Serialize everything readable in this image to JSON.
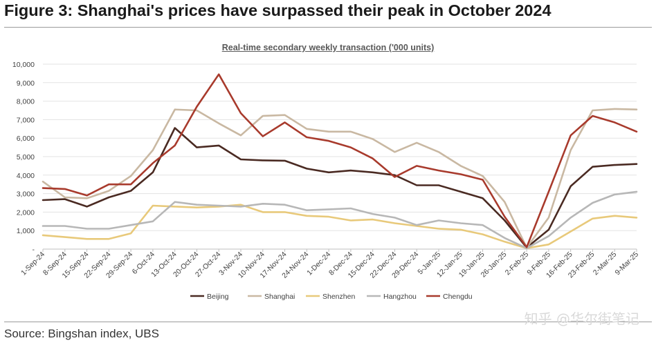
{
  "figure_title": "Figure 3: Shanghai's prices have surpassed their peak in October 2024",
  "source": "Source: Bingshan index, UBS",
  "watermark": "知乎 @华尔街笔记",
  "colors": {
    "Beijing": "#4a2a22",
    "Shanghai": "#c9b8a2",
    "Shenzhen": "#e8c97a",
    "Hangzhou": "#b7b7b7",
    "Chengdu": "#a83a2c"
  },
  "chart_data": {
    "type": "line",
    "title": "Real-time secondary weekly transaction ('000 units)",
    "xlabel": "",
    "ylabel": "",
    "ylim": [
      0,
      10000
    ],
    "yticks": [
      "-",
      "1,000",
      "2,000",
      "3,000",
      "4,000",
      "5,000",
      "6,000",
      "7,000",
      "8,000",
      "9,000",
      "10,000"
    ],
    "grid": true,
    "legend_position": "bottom",
    "categories": [
      "1-Sep-24",
      "8-Sep-24",
      "15-Sep-24",
      "22-Sep-24",
      "29-Sep-24",
      "6-Oct-24",
      "13-Oct-24",
      "20-Oct-24",
      "27-Oct-24",
      "3-Nov-24",
      "10-Nov-24",
      "17-Nov-24",
      "24-Nov-24",
      "1-Dec-24",
      "8-Dec-24",
      "15-Dec-24",
      "22-Dec-24",
      "29-Dec-24",
      "5-Jan-25",
      "12-Jan-25",
      "19-Jan-25",
      "26-Jan-25",
      "2-Feb-25",
      "9-Feb-25",
      "16-Feb-25",
      "23-Feb-25",
      "2-Mar-25",
      "9-Mar-25"
    ],
    "series": [
      {
        "name": "Beijing",
        "values": [
          2650,
          2700,
          2300,
          2800,
          3150,
          4150,
          6550,
          5500,
          5600,
          4850,
          4800,
          4780,
          4350,
          4150,
          4250,
          4150,
          4000,
          3450,
          3450,
          3100,
          2750,
          1550,
          80,
          1050,
          3400,
          4450,
          4550,
          4600
        ]
      },
      {
        "name": "Shanghai",
        "values": [
          3650,
          2800,
          2750,
          3150,
          3950,
          5350,
          7550,
          7500,
          6800,
          6150,
          7200,
          7250,
          6500,
          6350,
          6350,
          5950,
          5250,
          5750,
          5250,
          4500,
          3950,
          2550,
          80,
          1700,
          5350,
          7500,
          7580,
          7550
        ]
      },
      {
        "name": "Shenzhen",
        "values": [
          750,
          650,
          550,
          550,
          850,
          2350,
          2300,
          2250,
          2300,
          2400,
          2000,
          2000,
          1800,
          1750,
          1550,
          1600,
          1400,
          1250,
          1100,
          1050,
          800,
          400,
          50,
          250,
          950,
          1650,
          1800,
          1700
        ]
      },
      {
        "name": "Hangzhou",
        "values": [
          1250,
          1250,
          1100,
          1100,
          1300,
          1500,
          2550,
          2400,
          2350,
          2300,
          2450,
          2400,
          2100,
          2150,
          2200,
          1900,
          1700,
          1300,
          1550,
          1400,
          1300,
          600,
          50,
          700,
          1700,
          2500,
          2950,
          3100
        ]
      },
      {
        "name": "Chengdu",
        "values": [
          3300,
          3250,
          2900,
          3500,
          3500,
          4650,
          5600,
          7700,
          9450,
          7350,
          6100,
          6850,
          6050,
          5850,
          5500,
          4900,
          3900,
          4500,
          4250,
          4050,
          3750,
          1750,
          100,
          3100,
          6150,
          7200,
          6850,
          6350
        ]
      }
    ]
  }
}
